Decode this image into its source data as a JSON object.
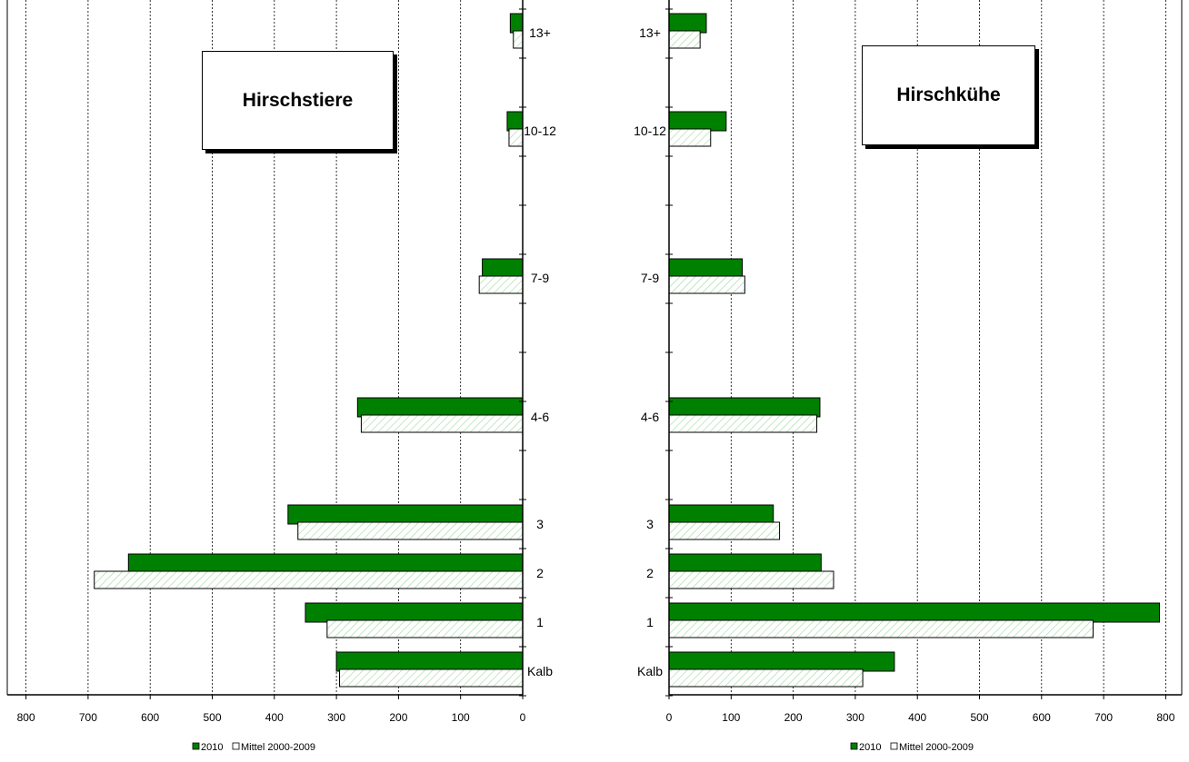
{
  "chart_data": [
    {
      "type": "bar",
      "orientation": "horizontal",
      "x_direction": "reversed",
      "title": "Hirschstiere",
      "categories": [
        "Kalb",
        "1",
        "2",
        "3",
        "4-6",
        "7-9",
        "10-12",
        "13+"
      ],
      "series": [
        {
          "name": "2010",
          "values": [
            300,
            350,
            635,
            378,
            266,
            65,
            25,
            20
          ],
          "color": "#008000"
        },
        {
          "name": "Mittel 2000-2009",
          "values": [
            295,
            315,
            690,
            362,
            260,
            70,
            22,
            15
          ],
          "color": "#ffffff"
        }
      ],
      "xlim": [
        0,
        800
      ],
      "xticks": [
        "800",
        "700",
        "600",
        "500",
        "400",
        "300",
        "200",
        "100",
        "0"
      ],
      "grid": true,
      "legend": "bottom"
    },
    {
      "type": "bar",
      "orientation": "horizontal",
      "title": "Hirschkühe",
      "categories": [
        "Kalb",
        "1",
        "2",
        "3",
        "4-6",
        "7-9",
        "10-12",
        "13+"
      ],
      "series": [
        {
          "name": "2010",
          "values": [
            363,
            790,
            245,
            168,
            243,
            118,
            92,
            60
          ],
          "color": "#008000"
        },
        {
          "name": "Mittel 2000-2009",
          "values": [
            312,
            683,
            265,
            178,
            238,
            122,
            67,
            50
          ],
          "color": "#ffffff"
        }
      ],
      "xlim": [
        0,
        800
      ],
      "xticks": [
        "0",
        "100",
        "200",
        "300",
        "400",
        "500",
        "600",
        "700",
        "800"
      ],
      "grid": true,
      "legend": "bottom"
    }
  ]
}
